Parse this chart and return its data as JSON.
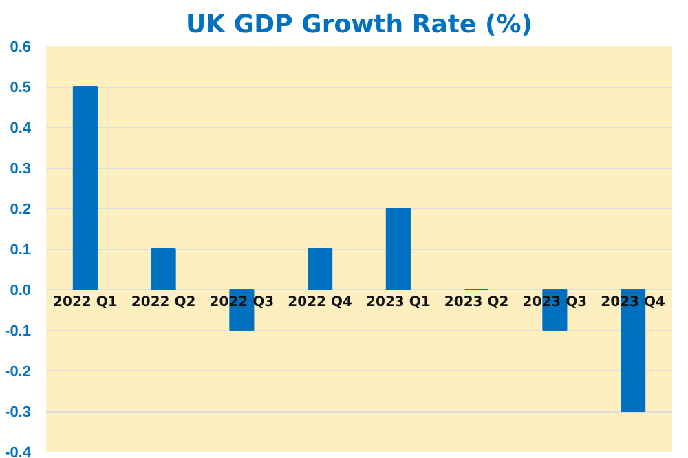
{
  "chart_data": {
    "type": "bar",
    "title": "UK GDP Growth Rate (%)",
    "categories": [
      "2022 Q1",
      "2022 Q2",
      "2022 Q3",
      "2022 Q4",
      "2023 Q1",
      "2023 Q2",
      "2023 Q3",
      "2023 Q4"
    ],
    "values": [
      0.5,
      0.1,
      -0.1,
      0.1,
      0.2,
      0.0,
      -0.1,
      -0.3
    ],
    "color": "#0070c0",
    "ylim": [
      -0.4,
      0.6
    ],
    "yticks": [
      {
        "value": 0.6,
        "label": "0.6"
      },
      {
        "value": 0.5,
        "label": "0.5"
      },
      {
        "value": 0.4,
        "label": "0.4"
      },
      {
        "value": 0.3,
        "label": "0.3"
      },
      {
        "value": 0.2,
        "label": "0.2"
      },
      {
        "value": 0.1,
        "label": "0.1"
      },
      {
        "value": 0.0,
        "label": "0.0"
      },
      {
        "value": -0.1,
        "label": "-0.1"
      },
      {
        "value": -0.2,
        "label": "-0.2"
      },
      {
        "value": -0.3,
        "label": "-0.3"
      },
      {
        "value": -0.4,
        "label": "-0.4"
      }
    ],
    "grid": "y"
  }
}
